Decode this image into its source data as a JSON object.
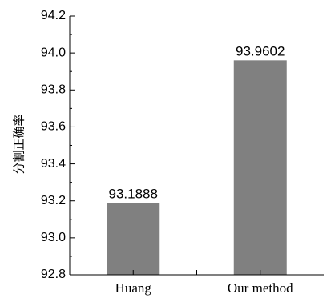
{
  "chart_data": {
    "type": "bar",
    "categories": [
      "Huang",
      "Our method"
    ],
    "values": [
      93.1888,
      93.9602
    ],
    "data_labels": [
      "93.1888",
      "93.9602"
    ],
    "ylabel": "分割正确率",
    "xlabel": "",
    "ylim": [
      92.8,
      94.2
    ],
    "yticks": [
      "92.8",
      "93.0",
      "93.2",
      "93.4",
      "93.6",
      "93.8",
      "94.0",
      "94.2"
    ],
    "bar_color": "#808080",
    "grid": false
  }
}
